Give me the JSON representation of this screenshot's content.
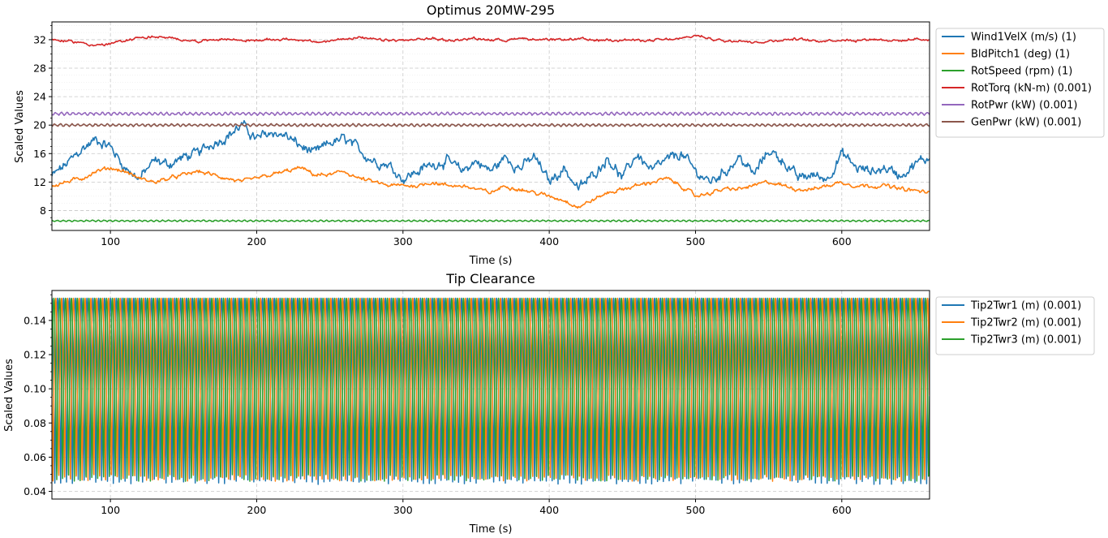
{
  "chart_data": [
    {
      "type": "line",
      "title": "Optimus 20MW-295",
      "xlabel": "Time (s)",
      "ylabel": "Scaled Values",
      "xlim": [
        60,
        660
      ],
      "ylim": [
        5.2,
        34.5
      ],
      "xticks": [
        100,
        200,
        300,
        400,
        500,
        600
      ],
      "yticks": [
        8,
        12,
        16,
        20,
        24,
        28,
        32
      ],
      "grid": true,
      "legend": "outside-right",
      "series": [
        {
          "name": "Wind1VelX (m/s) (1)",
          "color": "#1f77b4",
          "kind": "wind",
          "x": [
            60,
            70,
            80,
            90,
            100,
            110,
            120,
            130,
            140,
            150,
            160,
            170,
            180,
            190,
            200,
            210,
            220,
            230,
            240,
            250,
            260,
            270,
            280,
            290,
            300,
            310,
            320,
            330,
            340,
            350,
            360,
            370,
            380,
            390,
            400,
            410,
            420,
            430,
            440,
            450,
            460,
            470,
            480,
            490,
            500,
            510,
            520,
            530,
            540,
            550,
            560,
            570,
            580,
            590,
            600,
            610,
            620,
            630,
            640,
            650,
            660
          ],
          "y": [
            12.8,
            14.5,
            16.5,
            18.0,
            17.0,
            14.0,
            12.5,
            15.0,
            14.5,
            15.5,
            16.0,
            17.5,
            18.5,
            20.0,
            18.0,
            19.0,
            18.5,
            17.0,
            16.0,
            17.5,
            18.0,
            16.5,
            15.0,
            14.5,
            12.5,
            13.5,
            14.5,
            15.0,
            13.5,
            15.0,
            13.5,
            15.5,
            14.0,
            15.5,
            12.0,
            14.0,
            11.0,
            13.0,
            15.5,
            12.5,
            16.0,
            13.5,
            15.0,
            16.0,
            13.5,
            12.0,
            13.5,
            15.5,
            13.0,
            16.5,
            15.0,
            12.5,
            13.0,
            12.5,
            16.0,
            14.0,
            13.5,
            14.0,
            13.0,
            14.5,
            15.5
          ]
        },
        {
          "name": "BldPitch1 (deg) (1)",
          "color": "#ff7f0e",
          "kind": "pitch",
          "x": [
            60,
            70,
            80,
            90,
            100,
            110,
            120,
            130,
            140,
            150,
            160,
            170,
            180,
            190,
            200,
            210,
            220,
            230,
            240,
            250,
            260,
            270,
            280,
            290,
            300,
            310,
            320,
            330,
            340,
            350,
            360,
            370,
            380,
            390,
            400,
            410,
            420,
            430,
            440,
            450,
            460,
            470,
            480,
            490,
            500,
            510,
            520,
            530,
            540,
            550,
            560,
            570,
            580,
            590,
            600,
            610,
            620,
            630,
            640,
            650,
            660
          ],
          "y": [
            11.5,
            12.0,
            12.5,
            13.5,
            14.0,
            13.5,
            12.5,
            12.0,
            12.5,
            13.0,
            13.5,
            13.0,
            12.5,
            12.0,
            12.5,
            13.0,
            13.5,
            14.0,
            13.0,
            13.0,
            13.5,
            12.5,
            12.0,
            11.5,
            11.5,
            11.5,
            12.0,
            11.5,
            11.5,
            11.0,
            10.5,
            11.5,
            11.0,
            10.5,
            10.0,
            9.5,
            8.5,
            9.5,
            10.5,
            11.0,
            11.5,
            12.0,
            12.5,
            11.5,
            10.0,
            10.5,
            11.0,
            11.0,
            11.5,
            12.0,
            11.5,
            11.0,
            11.0,
            11.5,
            12.0,
            11.5,
            11.5,
            11.5,
            11.0,
            10.8,
            10.5
          ]
        },
        {
          "name": "RotSpeed (rpm) (1)",
          "color": "#2ca02c",
          "kind": "flat",
          "base": 6.55,
          "amp": 0.09
        },
        {
          "name": "RotTorq (kN-m) (0.001)",
          "color": "#d62728",
          "kind": "torque",
          "x": [
            60,
            70,
            80,
            90,
            100,
            110,
            120,
            130,
            140,
            150,
            160,
            170,
            180,
            190,
            200,
            210,
            220,
            230,
            240,
            250,
            260,
            270,
            280,
            290,
            300,
            310,
            320,
            330,
            340,
            350,
            360,
            370,
            380,
            390,
            400,
            410,
            420,
            430,
            440,
            450,
            460,
            470,
            480,
            490,
            500,
            510,
            520,
            530,
            540,
            550,
            560,
            570,
            580,
            590,
            600,
            610,
            620,
            630,
            640,
            650,
            660
          ],
          "y": [
            32.0,
            31.8,
            31.6,
            31.2,
            31.4,
            31.9,
            32.3,
            32.4,
            32.2,
            32.0,
            31.8,
            32.0,
            32.1,
            31.9,
            31.9,
            32.0,
            32.1,
            32.0,
            31.6,
            31.8,
            32.2,
            32.3,
            32.0,
            31.9,
            31.9,
            32.0,
            32.2,
            31.9,
            32.0,
            32.2,
            32.0,
            31.9,
            32.3,
            32.0,
            31.9,
            32.0,
            32.1,
            31.9,
            32.0,
            32.0,
            31.9,
            31.9,
            32.0,
            32.1,
            32.6,
            32.2,
            31.8,
            32.0,
            31.6,
            31.8,
            32.0,
            32.1,
            31.8,
            31.9,
            32.0,
            31.9,
            32.1,
            32.0,
            31.8,
            32.1,
            32.0
          ]
        },
        {
          "name": "RotPwr (kW) (0.001)",
          "color": "#9467bd",
          "kind": "flat",
          "base": 21.6,
          "amp": 0.17
        },
        {
          "name": "GenPwr (kW) (0.001)",
          "color": "#8c564b",
          "kind": "flat",
          "base": 20.0,
          "amp": 0.15
        }
      ]
    },
    {
      "type": "line",
      "title": "Tip Clearance",
      "xlabel": "Time (s)",
      "ylabel": "Scaled Values",
      "xlim": [
        60,
        660
      ],
      "ylim": [
        0.0355,
        0.1575
      ],
      "xticks": [
        100,
        200,
        300,
        400,
        500,
        600
      ],
      "yticks": [
        0.04,
        0.06,
        0.08,
        0.1,
        0.12,
        0.14
      ],
      "ytick_labels": [
        "0.04",
        "0.06",
        "0.08",
        "0.10",
        "0.12",
        "0.14"
      ],
      "grid": true,
      "legend": "outside-right",
      "oscillation": {
        "period_s": 4.0,
        "max": 0.153,
        "min": 0.046
      },
      "series": [
        {
          "name": "Tip2Twr1 (m) (0.001)",
          "color": "#1f77b4",
          "phase": 0.0
        },
        {
          "name": "Tip2Twr2 (m) (0.001)",
          "color": "#ff7f0e",
          "phase": 0.333
        },
        {
          "name": "Tip2Twr3 (m) (0.001)",
          "color": "#2ca02c",
          "phase": 0.667
        }
      ]
    }
  ]
}
